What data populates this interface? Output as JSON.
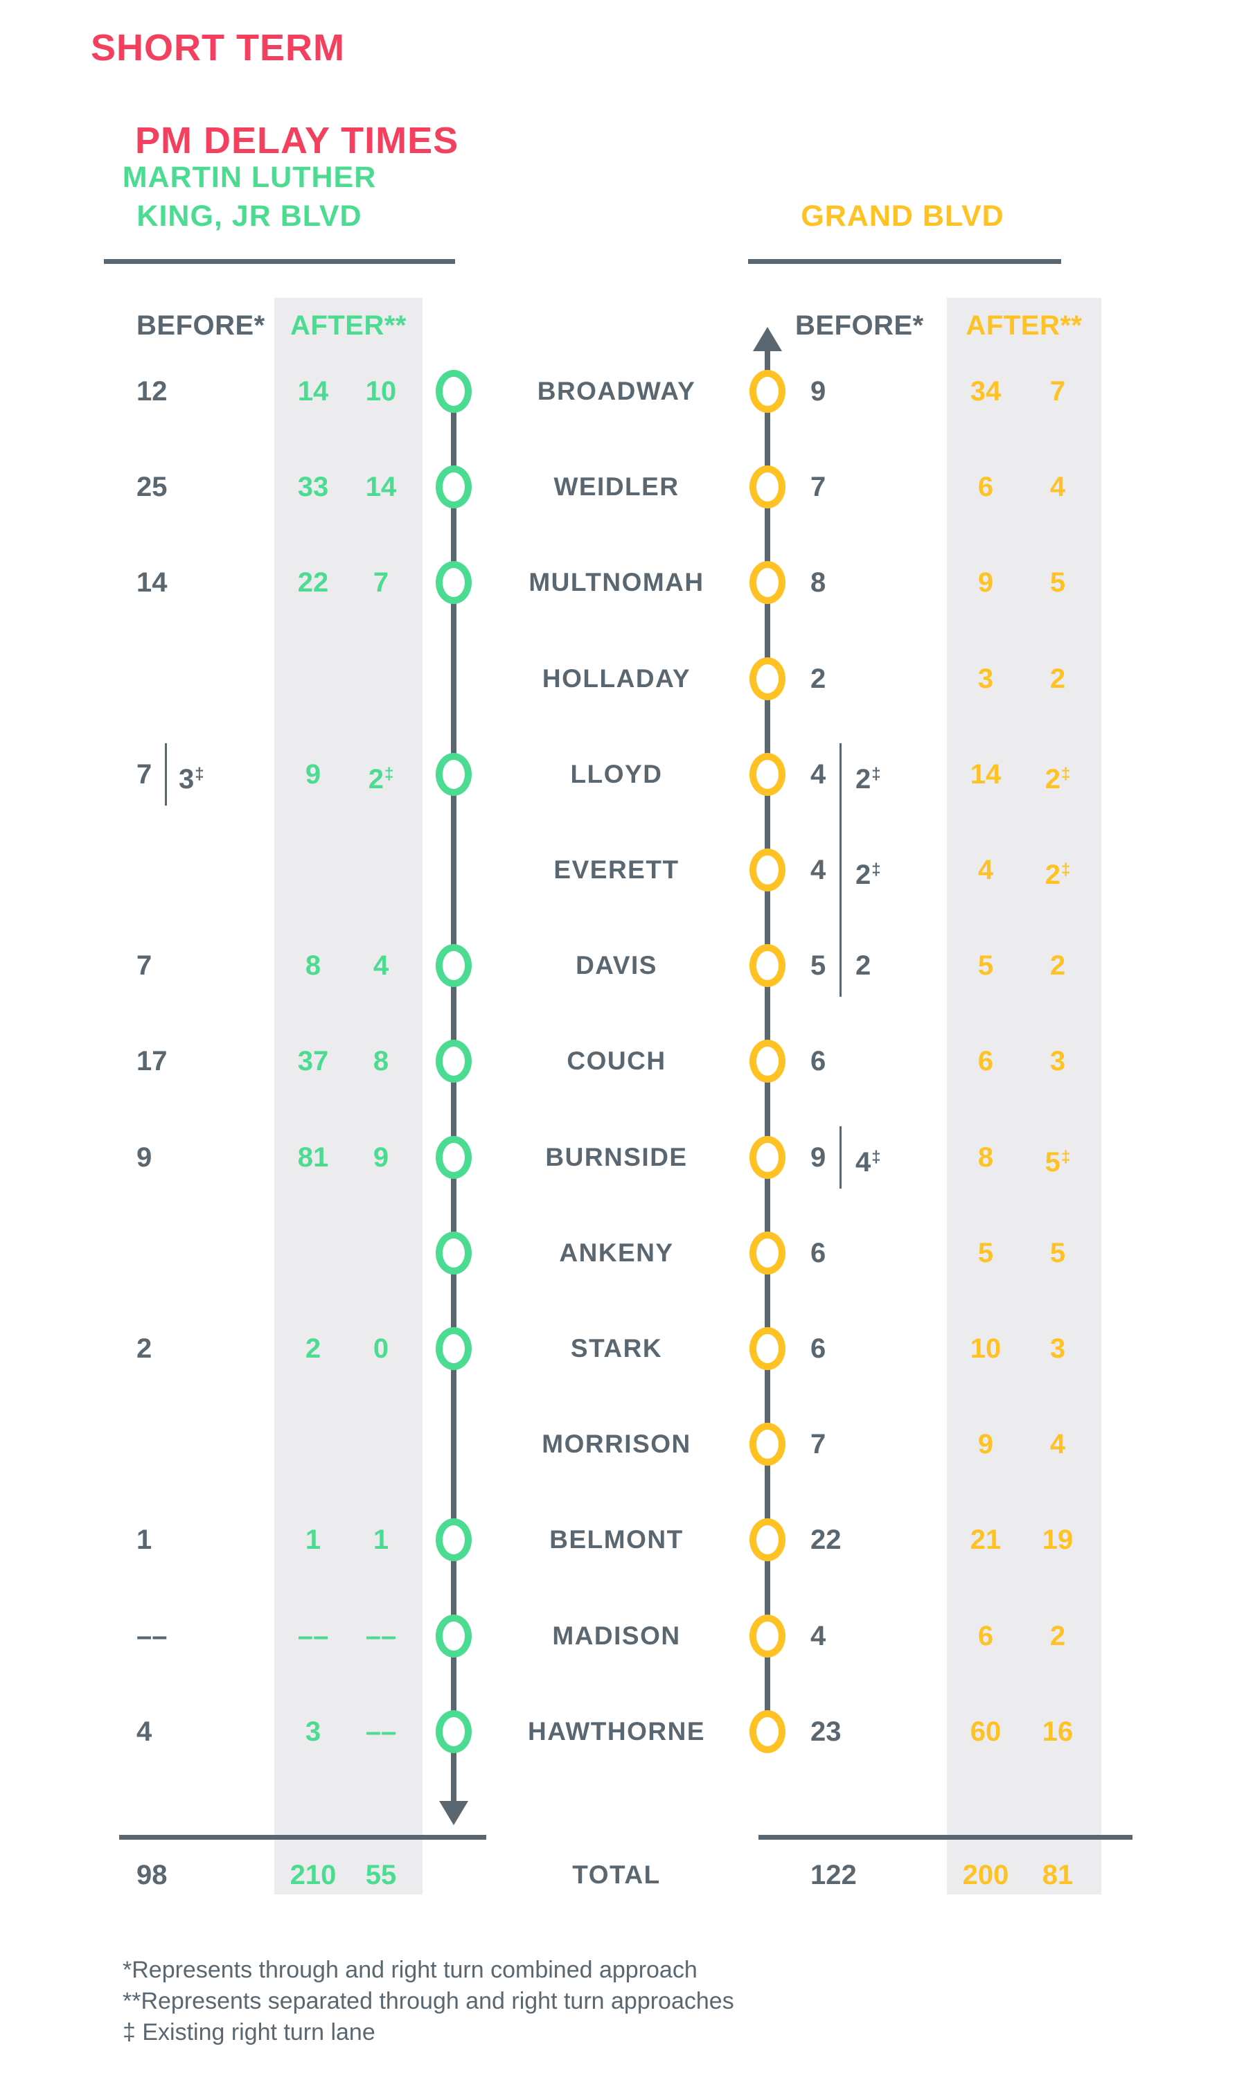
{
  "title": {
    "line1": "SHORT TERM",
    "line2": "PM DELAY TIMES"
  },
  "corridors": {
    "mlk": {
      "name_line1": "MARTIN LUTHER",
      "name_line2": "KING, JR BLVD",
      "before_label": "BEFORE*",
      "after_label": "AFTER**",
      "direction": "southbound (down arrow at bottom)"
    },
    "grand": {
      "name": "GRAND BLVD",
      "before_label": "BEFORE*",
      "after_label": "AFTER**",
      "direction": "northbound (up arrow at top)"
    }
  },
  "colors": {
    "pink_title": "#F4405F",
    "mint_green": "#4BDC92",
    "yellow": "#FFC224",
    "slate_gray": "#5A6770",
    "light_gray_box": "#ECECEE"
  },
  "rows": [
    {
      "street": "BROADWAY",
      "m_circle": true,
      "m_b": "12",
      "m_b_sup": "",
      "m_b2": "",
      "m_b2_sup": "",
      "m_a1": "14",
      "m_a1_sup": "",
      "m_a2": "10",
      "m_a2_sup": "",
      "g_b": "9",
      "g_b_sup": "",
      "g_b2": "",
      "g_b2_sup": "",
      "g_a1": "34",
      "g_a1_sup": "",
      "g_a2": "7",
      "g_a2_sup": ""
    },
    {
      "street": "WEIDLER",
      "m_circle": true,
      "m_b": "25",
      "m_b_sup": "",
      "m_b2": "",
      "m_b2_sup": "",
      "m_a1": "33",
      "m_a1_sup": "",
      "m_a2": "14",
      "m_a2_sup": "",
      "g_b": "7",
      "g_b_sup": "",
      "g_b2": "",
      "g_b2_sup": "",
      "g_a1": "6",
      "g_a1_sup": "",
      "g_a2": "4",
      "g_a2_sup": ""
    },
    {
      "street": "MULTNOMAH",
      "m_circle": true,
      "m_b": "14",
      "m_b_sup": "",
      "m_b2": "",
      "m_b2_sup": "",
      "m_a1": "22",
      "m_a1_sup": "",
      "m_a2": "7",
      "m_a2_sup": "",
      "g_b": "8",
      "g_b_sup": "",
      "g_b2": "",
      "g_b2_sup": "",
      "g_a1": "9",
      "g_a1_sup": "",
      "g_a2": "5",
      "g_a2_sup": ""
    },
    {
      "street": "HOLLADAY",
      "m_circle": false,
      "m_b": "",
      "m_b_sup": "",
      "m_b2": "",
      "m_b2_sup": "",
      "m_a1": "",
      "m_a1_sup": "",
      "m_a2": "",
      "m_a2_sup": "",
      "g_b": "2",
      "g_b_sup": "",
      "g_b2": "",
      "g_b2_sup": "",
      "g_a1": "3",
      "g_a1_sup": "",
      "g_a2": "2",
      "g_a2_sup": ""
    },
    {
      "street": "LLOYD",
      "m_circle": true,
      "m_b": "7",
      "m_b_sup": "",
      "m_b2": "3",
      "m_b2_sup": "‡",
      "m_a1": "9",
      "m_a1_sup": "",
      "m_a2": "2",
      "m_a2_sup": "‡",
      "g_b": "4",
      "g_b_sup": "",
      "g_b2": "2",
      "g_b2_sup": "‡",
      "g_a1": "14",
      "g_a1_sup": "",
      "g_a2": "2",
      "g_a2_sup": "‡"
    },
    {
      "street": "EVERETT",
      "m_circle": false,
      "m_b": "",
      "m_b_sup": "",
      "m_b2": "",
      "m_b2_sup": "",
      "m_a1": "",
      "m_a1_sup": "",
      "m_a2": "",
      "m_a2_sup": "",
      "g_b": "4",
      "g_b_sup": "",
      "g_b2": "2",
      "g_b2_sup": "‡",
      "g_a1": "4",
      "g_a1_sup": "",
      "g_a2": "2",
      "g_a2_sup": "‡"
    },
    {
      "street": "DAVIS",
      "m_circle": true,
      "m_b": "7",
      "m_b_sup": "",
      "m_b2": "",
      "m_b2_sup": "",
      "m_a1": "8",
      "m_a1_sup": "",
      "m_a2": "4",
      "m_a2_sup": "",
      "g_b": "5",
      "g_b_sup": "",
      "g_b2": "2",
      "g_b2_sup": "",
      "g_a1": "5",
      "g_a1_sup": "",
      "g_a2": "2",
      "g_a2_sup": ""
    },
    {
      "street": "COUCH",
      "m_circle": true,
      "m_b": "17",
      "m_b_sup": "",
      "m_b2": "",
      "m_b2_sup": "",
      "m_a1": "37",
      "m_a1_sup": "",
      "m_a2": "8",
      "m_a2_sup": "",
      "g_b": "6",
      "g_b_sup": "",
      "g_b2": "",
      "g_b2_sup": "",
      "g_a1": "6",
      "g_a1_sup": "",
      "g_a2": "3",
      "g_a2_sup": ""
    },
    {
      "street": "BURNSIDE",
      "m_circle": true,
      "m_b": "9",
      "m_b_sup": "",
      "m_b2": "",
      "m_b2_sup": "",
      "m_a1": "81",
      "m_a1_sup": "",
      "m_a2": "9",
      "m_a2_sup": "",
      "g_b": "9",
      "g_b_sup": "",
      "g_b2": "4",
      "g_b2_sup": "‡",
      "g_a1": "8",
      "g_a1_sup": "",
      "g_a2": "5",
      "g_a2_sup": "‡"
    },
    {
      "street": "ANKENY",
      "m_circle": true,
      "m_b": "",
      "m_b_sup": "",
      "m_b2": "",
      "m_b2_sup": "",
      "m_a1": "",
      "m_a1_sup": "",
      "m_a2": "",
      "m_a2_sup": "",
      "g_b": "6",
      "g_b_sup": "",
      "g_b2": "",
      "g_b2_sup": "",
      "g_a1": "5",
      "g_a1_sup": "",
      "g_a2": "5",
      "g_a2_sup": ""
    },
    {
      "street": "STARK",
      "m_circle": true,
      "m_b": "2",
      "m_b_sup": "",
      "m_b2": "",
      "m_b2_sup": "",
      "m_a1": "2",
      "m_a1_sup": "",
      "m_a2": "0",
      "m_a2_sup": "",
      "g_b": "6",
      "g_b_sup": "",
      "g_b2": "",
      "g_b2_sup": "",
      "g_a1": "10",
      "g_a1_sup": "",
      "g_a2": "3",
      "g_a2_sup": ""
    },
    {
      "street": "MORRISON",
      "m_circle": false,
      "m_b": "",
      "m_b_sup": "",
      "m_b2": "",
      "m_b2_sup": "",
      "m_a1": "",
      "m_a1_sup": "",
      "m_a2": "",
      "m_a2_sup": "",
      "g_b": "7",
      "g_b_sup": "",
      "g_b2": "",
      "g_b2_sup": "",
      "g_a1": "9",
      "g_a1_sup": "",
      "g_a2": "4",
      "g_a2_sup": ""
    },
    {
      "street": "BELMONT",
      "m_circle": true,
      "m_b": "1",
      "m_b_sup": "",
      "m_b2": "",
      "m_b2_sup": "",
      "m_a1": "1",
      "m_a1_sup": "",
      "m_a2": "1",
      "m_a2_sup": "",
      "g_b": "22",
      "g_b_sup": "",
      "g_b2": "",
      "g_b2_sup": "",
      "g_a1": "21",
      "g_a1_sup": "",
      "g_a2": "19",
      "g_a2_sup": ""
    },
    {
      "street": "MADISON",
      "m_circle": true,
      "m_b": "––",
      "m_b_sup": "",
      "m_b2": "",
      "m_b2_sup": "",
      "m_a1": "––",
      "m_a1_sup": "",
      "m_a2": "––",
      "m_a2_sup": "",
      "g_b": "4",
      "g_b_sup": "",
      "g_b2": "",
      "g_b2_sup": "",
      "g_a1": "6",
      "g_a1_sup": "",
      "g_a2": "2",
      "g_a2_sup": ""
    },
    {
      "street": "HAWTHORNE",
      "m_circle": true,
      "m_b": "4",
      "m_b_sup": "",
      "m_b2": "",
      "m_b2_sup": "",
      "m_a1": "3",
      "m_a1_sup": "",
      "m_a2": "––",
      "m_a2_sup": "",
      "g_b": "23",
      "g_b_sup": "",
      "g_b2": "",
      "g_b2_sup": "",
      "g_a1": "60",
      "g_a1_sup": "",
      "g_a2": "16",
      "g_a2_sup": ""
    }
  ],
  "dividers": [
    {
      "side": "mlk",
      "from_row": 4,
      "to_row": 4
    },
    {
      "side": "grand",
      "from_row": 4,
      "to_row": 6
    },
    {
      "side": "grand",
      "from_row": 8,
      "to_row": 8
    }
  ],
  "total_label": "TOTAL",
  "totals": {
    "mlk": {
      "before": "98",
      "after1": "210",
      "after2": "55"
    },
    "grand": {
      "before": "122",
      "after1": "200",
      "after2": "81"
    }
  },
  "footnotes": [
    "*Represents through and right turn combined approach",
    "**Represents separated through and right turn approaches",
    "‡ Existing right turn lane"
  ],
  "chart_data": {
    "type": "table",
    "title": "SHORT TERM PM DELAY TIMES",
    "corridors": [
      "MARTIN LUTHER KING, JR BLVD",
      "GRAND BLVD"
    ],
    "columns": [
      "street",
      "mlk_before",
      "mlk_before_right_turn",
      "mlk_after_through",
      "mlk_after_right_turn",
      "grand_before",
      "grand_before_right_turn",
      "grand_after_through",
      "grand_after_right_turn"
    ],
    "rows": [
      [
        "BROADWAY",
        12,
        null,
        14,
        10,
        9,
        null,
        34,
        7
      ],
      [
        "WEIDLER",
        25,
        null,
        33,
        14,
        7,
        null,
        6,
        4
      ],
      [
        "MULTNOMAH",
        14,
        null,
        22,
        7,
        8,
        null,
        9,
        5
      ],
      [
        "HOLLADAY",
        null,
        null,
        null,
        null,
        2,
        null,
        3,
        2
      ],
      [
        "LLOYD",
        7,
        "3‡",
        9,
        "2‡",
        4,
        "2‡",
        14,
        "2‡"
      ],
      [
        "EVERETT",
        null,
        null,
        null,
        null,
        4,
        "2‡",
        4,
        "2‡"
      ],
      [
        "DAVIS",
        7,
        null,
        8,
        4,
        5,
        2,
        5,
        2
      ],
      [
        "COUCH",
        17,
        null,
        37,
        8,
        6,
        null,
        6,
        3
      ],
      [
        "BURNSIDE",
        9,
        null,
        81,
        9,
        9,
        "4‡",
        8,
        "5‡"
      ],
      [
        "ANKENY",
        null,
        null,
        null,
        null,
        6,
        null,
        5,
        5
      ],
      [
        "STARK",
        2,
        null,
        2,
        0,
        6,
        null,
        10,
        3
      ],
      [
        "MORRISON",
        null,
        null,
        null,
        null,
        7,
        null,
        9,
        4
      ],
      [
        "BELMONT",
        1,
        null,
        1,
        1,
        22,
        null,
        21,
        19
      ],
      [
        "MADISON",
        "––",
        null,
        "––",
        "––",
        4,
        null,
        6,
        2
      ],
      [
        "HAWTHORNE",
        4,
        null,
        3,
        "––",
        23,
        null,
        60,
        16
      ]
    ],
    "totals": [
      "TOTAL",
      98,
      null,
      210,
      55,
      122,
      null,
      200,
      81
    ],
    "notes": [
      "*Represents through and right turn combined approach",
      "**Represents separated through and right turn approaches",
      "‡ Existing right turn lane"
    ],
    "legend_position": "none",
    "grid": false
  }
}
